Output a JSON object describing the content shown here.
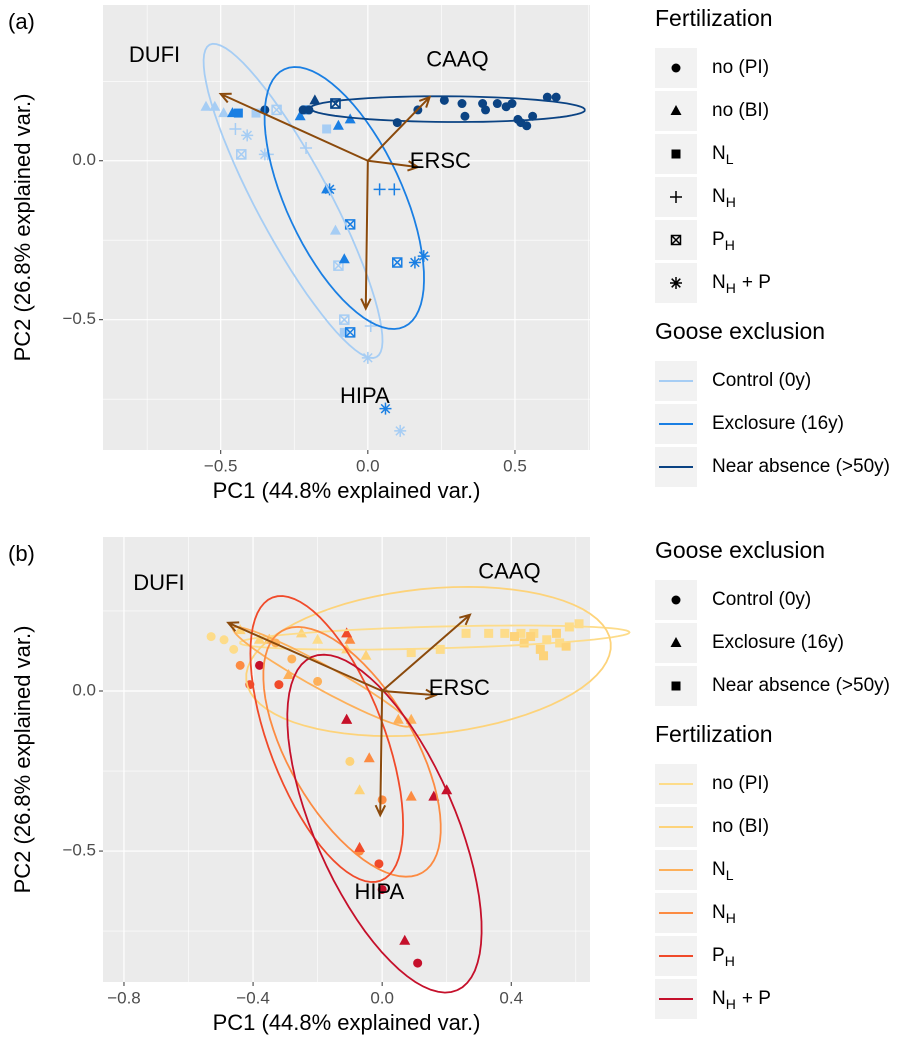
{
  "chart_data": [
    {
      "type": "scatter",
      "panel": "(a)",
      "xlabel": "PC1 (44.8% explained var.)",
      "ylabel": "PC2 (26.8% explained var.)",
      "xlim": [
        -0.9,
        0.755
      ],
      "ylim": [
        -0.91,
        0.49
      ],
      "xticks": [
        {
          "value": -0.5,
          "label": "−0.5"
        },
        {
          "value": 0,
          "label": "0.0"
        },
        0.5
      ],
      "yticks": [
        {
          "value": -0.5,
          "label": "−0.5"
        },
        {
          "value": 0,
          "label": "0.0"
        }
      ],
      "grid": true,
      "shape_legend": {
        "title": "Fertilization",
        "labels": [
          {
            "text": "no (PI)"
          },
          {
            "text": "no (BI)"
          },
          {
            "text": "N",
            "sub": "L"
          },
          {
            "text": "N",
            "sub": "H"
          },
          {
            "text": "P",
            "sub": "H"
          },
          {
            "text": "N",
            "sub": "H",
            "tail": "+ P"
          }
        ],
        "shapes": [
          "circle",
          "triangle",
          "square",
          "plus",
          "boxtimes",
          "asterisk"
        ]
      },
      "color_legend_title": "Goose exclusion",
      "series": [
        {
          "name": "Control (0y)",
          "color": "#a6cdf4",
          "x": [
            -0.55,
            -0.52,
            -0.45,
            -0.43,
            -0.41,
            -0.34,
            -0.21,
            -0.35,
            -0.31,
            -0.14,
            -0.11,
            -0.1,
            -0.08,
            -0.08,
            0.0,
            0.11,
            0.01,
            -0.49,
            -0.38
          ],
          "y": [
            0.17,
            0.17,
            0.1,
            0.02,
            0.08,
            0.02,
            0.04,
            0.02,
            0.16,
            0.1,
            -0.22,
            -0.33,
            -0.5,
            -0.54,
            -0.62,
            -0.85,
            -0.52,
            0.15,
            0.15
          ],
          "shapes": [
            "triangle",
            "triangle",
            "plus",
            "boxtimes",
            "asterisk",
            "plus",
            "plus",
            "asterisk",
            "boxtimes",
            "square",
            "triangle",
            "boxtimes",
            "boxtimes",
            "square",
            "asterisk",
            "asterisk",
            "plus",
            "triangle",
            "square"
          ]
        },
        {
          "name": "Exclosure (16y)",
          "color": "#1a7fe3",
          "x": [
            -0.46,
            -0.23,
            -0.1,
            -0.14,
            -0.08,
            -0.11,
            -0.06,
            0.1,
            -0.06,
            0.04,
            0.09,
            -0.13,
            0.16,
            0.19,
            0.06,
            -0.21,
            -0.06,
            -0.44
          ],
          "y": [
            0.15,
            0.14,
            0.11,
            -0.09,
            -0.31,
            0.18,
            -0.2,
            -0.32,
            -0.54,
            -0.09,
            -0.09,
            -0.09,
            -0.32,
            -0.3,
            -0.78,
            0.16,
            0.13,
            0.15
          ],
          "shapes": [
            "triangle",
            "triangle",
            "triangle",
            "triangle",
            "triangle",
            "boxtimes",
            "boxtimes",
            "boxtimes",
            "boxtimes",
            "plus",
            "plus",
            "asterisk",
            "asterisk",
            "asterisk",
            "asterisk",
            "square",
            "triangle",
            "square"
          ]
        },
        {
          "name": "Near absence (>50y)",
          "color": "#0b4383",
          "x": [
            -0.35,
            -0.22,
            -0.2,
            0.1,
            0.17,
            0.26,
            0.32,
            0.39,
            0.4,
            0.44,
            0.47,
            0.49,
            0.51,
            0.52,
            0.54,
            0.56,
            0.61,
            0.64,
            0.33,
            -0.18,
            -0.11
          ],
          "y": [
            0.16,
            0.16,
            0.16,
            0.12,
            0.16,
            0.19,
            0.18,
            0.18,
            0.16,
            0.18,
            0.17,
            0.18,
            0.13,
            0.12,
            0.11,
            0.14,
            0.2,
            0.2,
            0.14,
            0.19,
            0.18
          ],
          "shapes": [
            "circle",
            "circle",
            "circle",
            "circle",
            "circle",
            "circle",
            "circle",
            "circle",
            "circle",
            "circle",
            "circle",
            "circle",
            "circle",
            "circle",
            "circle",
            "circle",
            "circle",
            "circle",
            "circle",
            "triangle",
            "boxtimes"
          ]
        }
      ],
      "arrow_color": "#8b4a0c",
      "loadings": [
        {
          "name": "DUFI",
          "x": -0.5,
          "y": 0.21
        },
        {
          "name": "CAAQ",
          "x": 0.21,
          "y": 0.2
        },
        {
          "name": "ERSC",
          "x": 0.17,
          "y": -0.02
        },
        {
          "name": "HIPA",
          "x": -0.007,
          "y": -0.465
        }
      ]
    },
    {
      "type": "scatter",
      "panel": "(b)",
      "xlabel": "PC1 (44.8% explained var.)",
      "ylabel": "PC2 (26.8% explained var.)",
      "xlim": [
        -0.865,
        0.644
      ],
      "ylim": [
        -0.909,
        0.481
      ],
      "xticks": [
        {
          "value": -0.8,
          "label": "−0.8"
        },
        {
          "value": -0.4,
          "label": "−0.4"
        },
        {
          "value": 0,
          "label": "0.0"
        },
        0.4
      ],
      "yticks": [
        {
          "value": -0.5,
          "label": "−0.5"
        },
        {
          "value": 0,
          "label": "0.0"
        }
      ],
      "grid": true,
      "shape_legend": {
        "title": "Goose exclusion",
        "labels": [
          {
            "text": "Control (0y)"
          },
          {
            "text": "Exclosure (16y)"
          },
          {
            "text": "Near absence (>50y)"
          }
        ],
        "shapes": [
          "circle",
          "triangle",
          "square"
        ]
      },
      "color_legend_title": "Fertilization",
      "series": [
        {
          "name": "no (PI)",
          "color": "#fddc8a",
          "x": [
            0.09,
            0.18,
            0.26,
            0.33,
            0.38,
            0.43,
            0.47,
            0.51,
            0.55,
            0.58,
            0.61,
            -0.53,
            -0.49,
            -0.46,
            -0.2,
            -0.11
          ],
          "y": [
            0.12,
            0.13,
            0.18,
            0.18,
            0.18,
            0.18,
            0.18,
            0.16,
            0.15,
            0.2,
            0.21,
            0.17,
            0.16,
            0.13,
            0.16,
            0.18
          ],
          "shapes": [
            "square",
            "square",
            "square",
            "square",
            "square",
            "square",
            "square",
            "square",
            "square",
            "square",
            "square",
            "circle",
            "circle",
            "circle",
            "triangle",
            "triangle"
          ]
        },
        {
          "name": "no (BI)",
          "color": "#fdd37a",
          "x": [
            0.41,
            0.44,
            0.46,
            0.49,
            0.5,
            0.54,
            0.57,
            -0.44,
            -0.38,
            -0.25,
            -0.11,
            -0.05,
            -0.07,
            -0.1
          ],
          "y": [
            0.17,
            0.15,
            0.17,
            0.13,
            0.11,
            0.18,
            0.14,
            0.19,
            0.16,
            0.18,
            0.13,
            0.11,
            -0.31,
            -0.22
          ],
          "shapes": [
            "square",
            "square",
            "square",
            "square",
            "square",
            "square",
            "square",
            "triangle",
            "triangle",
            "triangle",
            "triangle",
            "triangle",
            "triangle",
            "circle"
          ]
        },
        {
          "name": "N",
          "sub": "L",
          "color": "#fdb05a",
          "x": [
            -0.33,
            -0.2,
            -0.28,
            -0.35,
            -0.29,
            0.05,
            0.09
          ],
          "y": [
            0.15,
            0.03,
            0.1,
            0.16,
            0.05,
            -0.09,
            -0.09
          ],
          "shapes": [
            "circle",
            "circle",
            "circle",
            "triangle",
            "triangle",
            "triangle",
            "triangle"
          ]
        },
        {
          "name": "N",
          "sub": "H",
          "color": "#fc8b42",
          "x": [
            -0.44,
            0.0,
            -0.07,
            0.09,
            -0.04,
            -0.1
          ],
          "y": [
            0.08,
            -0.34,
            -0.5,
            -0.33,
            -0.21,
            0.16
          ],
          "shapes": [
            "circle",
            "circle",
            "circle",
            "triangle",
            "triangle",
            "triangle"
          ]
        },
        {
          "name": "P",
          "sub": "H",
          "color": "#f04a2a",
          "x": [
            -0.41,
            -0.32,
            -0.01,
            -0.11,
            -0.07,
            -0.11
          ],
          "y": [
            0.02,
            0.02,
            -0.54,
            -0.09,
            -0.49,
            0.18
          ],
          "shapes": [
            "circle",
            "circle",
            "circle",
            "triangle",
            "triangle",
            "triangle"
          ]
        },
        {
          "name": "N",
          "sub": "H",
          "tail": "+ P",
          "color": "#c5102b",
          "x": [
            -0.38,
            0.0,
            0.11,
            0.07,
            0.16,
            0.2,
            -0.11
          ],
          "y": [
            0.08,
            -0.62,
            -0.85,
            -0.78,
            -0.33,
            -0.31,
            -0.09
          ],
          "shapes": [
            "circle",
            "circle",
            "circle",
            "triangle",
            "triangle",
            "triangle",
            "triangle"
          ]
        }
      ],
      "arrow_color": "#8b4a0c",
      "loadings": [
        {
          "name": "DUFI",
          "x": -0.477,
          "y": 0.213
        },
        {
          "name": "CAAQ",
          "x": 0.272,
          "y": 0.238
        },
        {
          "name": "ERSC",
          "x": 0.165,
          "y": -0.013
        },
        {
          "name": "HIPA",
          "x": -0.006,
          "y": -0.388
        }
      ]
    }
  ]
}
